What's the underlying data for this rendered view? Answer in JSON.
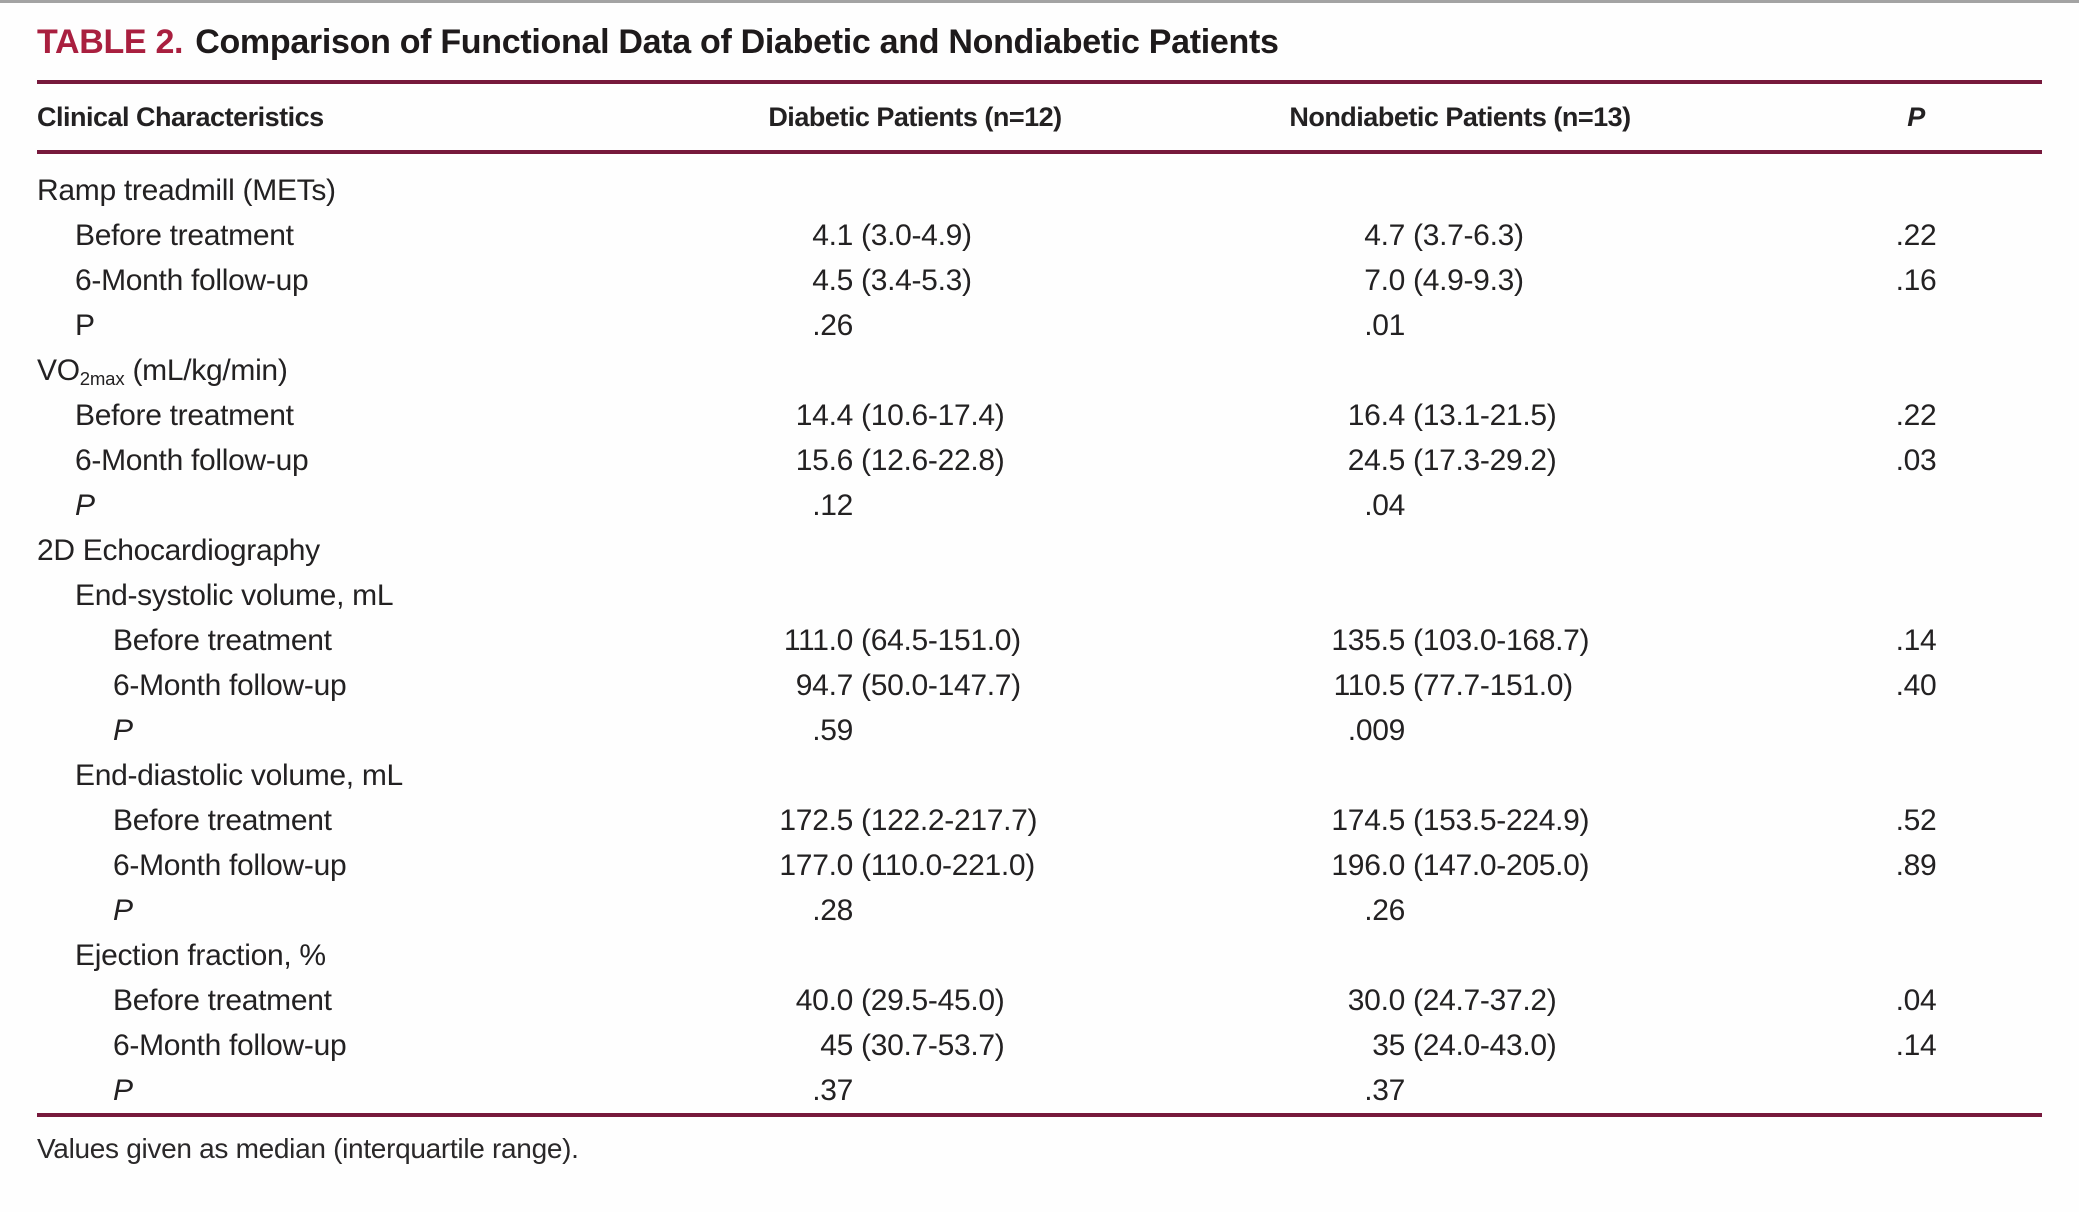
{
  "table": {
    "tag": "TABLE 2.",
    "title": "Comparison of Functional Data of Diabetic and Nondiabetic Patients",
    "columns": [
      "Clinical Characteristics",
      "Diabetic Patients (n=12)",
      "Nondiabetic Patients (n=13)",
      "P"
    ],
    "footnote": "Values given as median (interquartile range).",
    "accent_color": "#a91f3f",
    "rule_color": "#77193c",
    "rows": [
      {
        "label": "Ramp treadmill (METs)",
        "indent": 0
      },
      {
        "label": "Before treatment",
        "indent": 1,
        "d_med": "4.1",
        "d_rng": "(3.0-4.9)",
        "n_med": "4.7",
        "n_rng": "(3.7-6.3)",
        "p": ".22"
      },
      {
        "label": "6-Month follow-up",
        "indent": 1,
        "d_med": "4.5",
        "d_rng": "(3.4-5.3)",
        "n_med": "7.0",
        "n_rng": "(4.9-9.3)",
        "p": ".16"
      },
      {
        "label": "P",
        "indent": 1,
        "d_med": ".26",
        "n_med": ".01"
      },
      {
        "label_pre": "VO",
        "label_sub": "2max",
        "label_post": " (mL/kg/min)",
        "indent": 0
      },
      {
        "label": "Before treatment",
        "indent": 1,
        "d_med": "14.4",
        "d_rng": "(10.6-17.4)",
        "n_med": "16.4",
        "n_rng": "(13.1-21.5)",
        "p": ".22"
      },
      {
        "label": "6-Month follow-up",
        "indent": 1,
        "d_med": "15.6",
        "d_rng": "(12.6-22.8)",
        "n_med": "24.5",
        "n_rng": "(17.3-29.2)",
        "p": ".03"
      },
      {
        "label": "P",
        "italic": true,
        "indent": 1,
        "d_med": ".12",
        "n_med": ".04"
      },
      {
        "label": "2D Echocardiography",
        "indent": 0
      },
      {
        "label": "End-systolic volume, mL",
        "indent": 1
      },
      {
        "label": "Before treatment",
        "indent": 2,
        "d_med": "111.0",
        "d_rng": "(64.5-151.0)",
        "n_med": "135.5",
        "n_rng": "(103.0-168.7)",
        "p": ".14"
      },
      {
        "label": "6-Month follow-up",
        "indent": 2,
        "d_med": "94.7",
        "d_rng": "(50.0-147.7)",
        "n_med": "110.5",
        "n_rng": "(77.7-151.0)",
        "p": ".40"
      },
      {
        "label": "P",
        "italic": true,
        "indent": 2,
        "d_med": ".59",
        "n_med": ".009"
      },
      {
        "label": "End-diastolic volume, mL",
        "indent": 1
      },
      {
        "label": "Before treatment",
        "indent": 2,
        "d_med": "172.5",
        "d_rng": "(122.2-217.7)",
        "n_med": "174.5",
        "n_rng": "(153.5-224.9)",
        "p": ".52"
      },
      {
        "label": "6-Month follow-up",
        "indent": 2,
        "d_med": "177.0",
        "d_rng": "(110.0-221.0)",
        "n_med": "196.0",
        "n_rng": "(147.0-205.0)",
        "p": ".89"
      },
      {
        "label": "P",
        "italic": true,
        "indent": 2,
        "d_med": ".28",
        "n_med": ".26"
      },
      {
        "label": "Ejection fraction, %",
        "indent": 1
      },
      {
        "label": "Before treatment",
        "indent": 2,
        "d_med": "40.0",
        "d_rng": "(29.5-45.0)",
        "n_med": "30.0",
        "n_rng": "(24.7-37.2)",
        "p": ".04"
      },
      {
        "label": "6-Month follow-up",
        "indent": 2,
        "d_med": "45",
        "d_rng": "(30.7-53.7)",
        "n_med": "35",
        "n_rng": "(24.0-43.0)",
        "p": ".14"
      },
      {
        "label": "P",
        "italic": true,
        "indent": 2,
        "d_med": ".37",
        "n_med": ".37"
      }
    ]
  }
}
